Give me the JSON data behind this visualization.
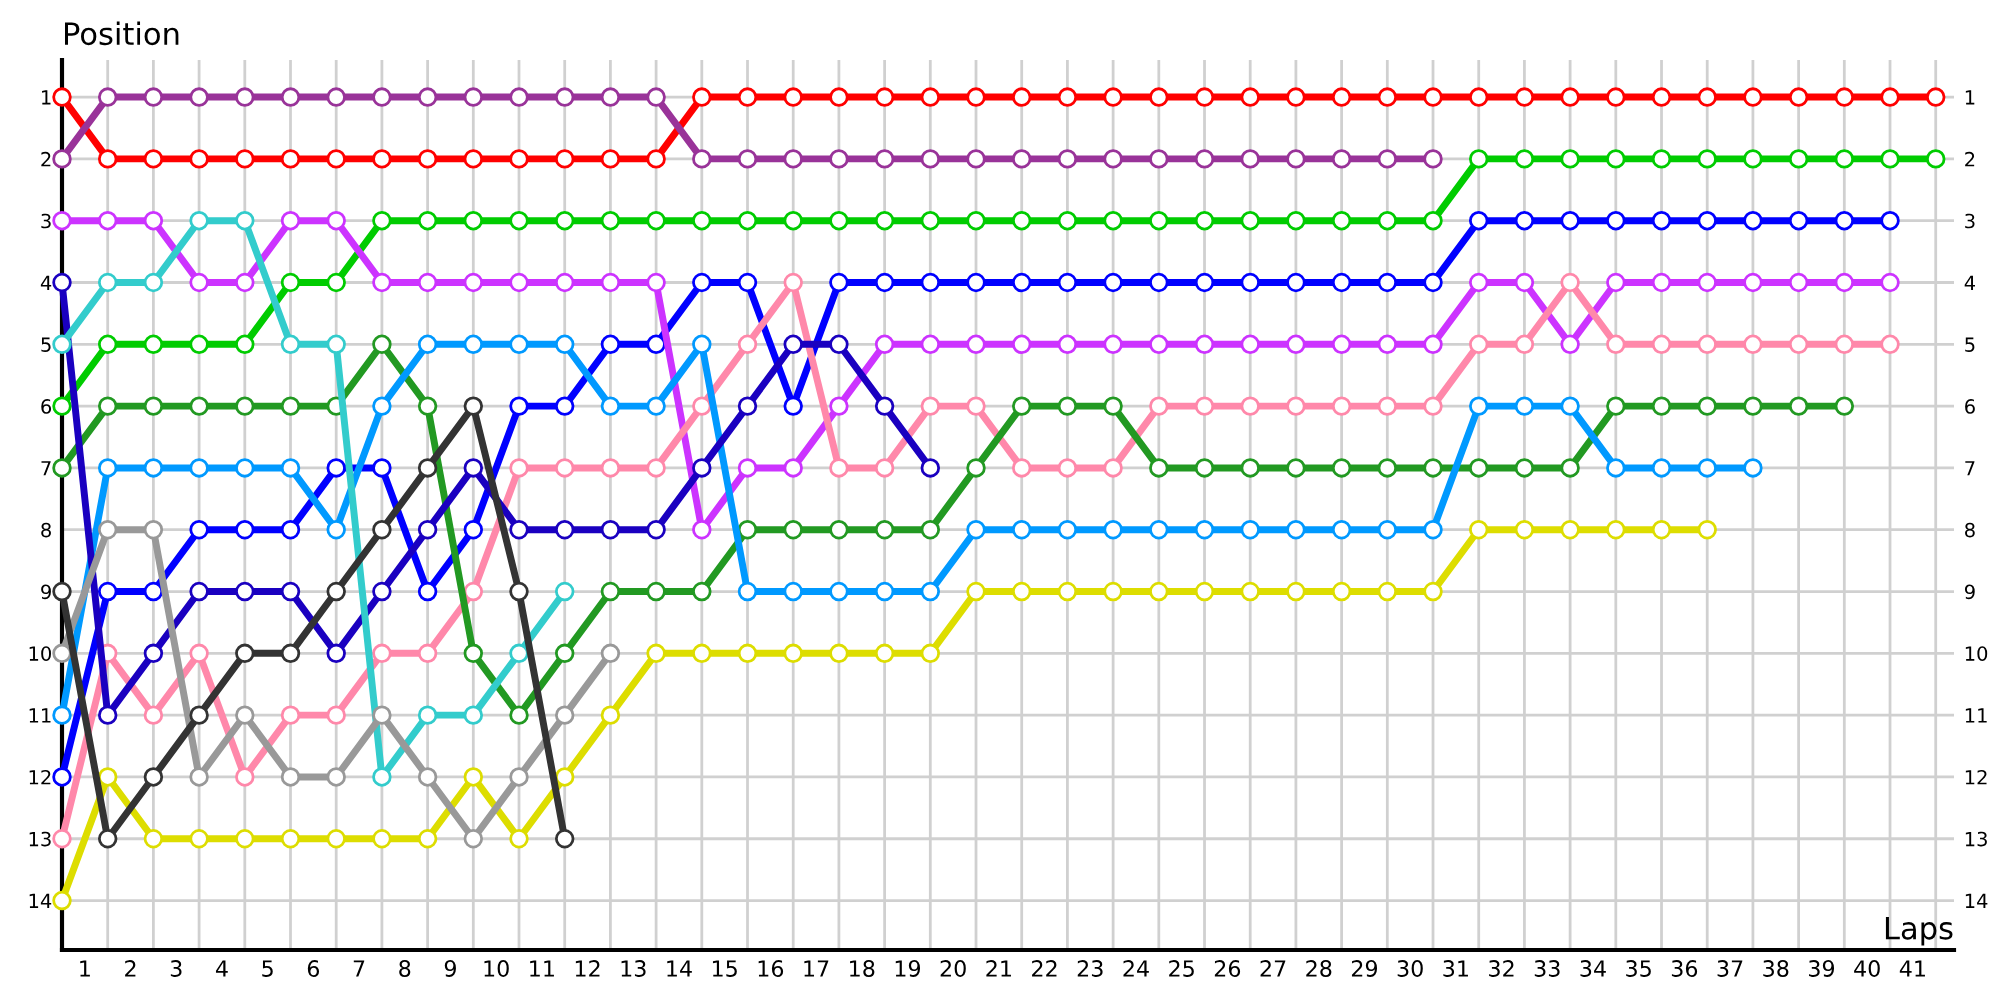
{
  "chart_data": {
    "type": "line",
    "xlabel": "Laps",
    "ylabel": "Position",
    "x": [
      0,
      1,
      2,
      3,
      4,
      5,
      6,
      7,
      8,
      9,
      10,
      11,
      12,
      13,
      14,
      15,
      16,
      17,
      18,
      19,
      20,
      21,
      22,
      23,
      24,
      25,
      26,
      27,
      28,
      29,
      30,
      31,
      32,
      33,
      34,
      35,
      36,
      37,
      38,
      39,
      40,
      41
    ],
    "xlim": [
      0,
      41.4
    ],
    "ylim": [
      14.8,
      0.4
    ],
    "y2lim": [
      14.8,
      0.4
    ],
    "xticks": [
      {
        "value": 0.5,
        "label": "1"
      },
      {
        "value": 1.5,
        "label": "2"
      },
      {
        "value": 2.5,
        "label": "3"
      },
      {
        "value": 3.5,
        "label": "4"
      },
      {
        "value": 4.5,
        "label": "5"
      },
      {
        "value": 5.5,
        "label": "6"
      },
      {
        "value": 6.5,
        "label": "7"
      },
      {
        "value": 7.5,
        "label": "8"
      },
      {
        "value": 8.5,
        "label": "9"
      },
      {
        "value": 9.5,
        "label": "10"
      },
      {
        "value": 10.5,
        "label": "11"
      },
      {
        "value": 11.5,
        "label": "12"
      },
      {
        "value": 12.5,
        "label": "13"
      },
      {
        "value": 13.5,
        "label": "14"
      },
      {
        "value": 14.5,
        "label": "15"
      },
      {
        "value": 15.5,
        "label": "16"
      },
      {
        "value": 16.5,
        "label": "17"
      },
      {
        "value": 17.5,
        "label": "18"
      },
      {
        "value": 18.5,
        "label": "19"
      },
      {
        "value": 19.5,
        "label": "20"
      },
      {
        "value": 20.5,
        "label": "21"
      },
      {
        "value": 21.5,
        "label": "22"
      },
      {
        "value": 22.5,
        "label": "23"
      },
      {
        "value": 23.5,
        "label": "24"
      },
      {
        "value": 24.5,
        "label": "25"
      },
      {
        "value": 25.5,
        "label": "26"
      },
      {
        "value": 26.5,
        "label": "27"
      },
      {
        "value": 27.5,
        "label": "28"
      },
      {
        "value": 28.5,
        "label": "29"
      },
      {
        "value": 29.5,
        "label": "30"
      },
      {
        "value": 30.5,
        "label": "31"
      },
      {
        "value": 31.5,
        "label": "32"
      },
      {
        "value": 32.5,
        "label": "33"
      },
      {
        "value": 33.5,
        "label": "34"
      },
      {
        "value": 34.5,
        "label": "35"
      },
      {
        "value": 35.5,
        "label": "36"
      },
      {
        "value": 36.5,
        "label": "37"
      },
      {
        "value": 37.5,
        "label": "38"
      },
      {
        "value": 38.5,
        "label": "39"
      },
      {
        "value": 39.5,
        "label": "40"
      },
      {
        "value": 40.5,
        "label": "41"
      }
    ],
    "yticks": [
      1,
      2,
      3,
      4,
      5,
      6,
      7,
      8,
      9,
      10,
      11,
      12,
      13,
      14
    ],
    "y2ticks": [
      1,
      2,
      3,
      4,
      5,
      6,
      7,
      8,
      9,
      10,
      11,
      12,
      13,
      14
    ],
    "grid": true,
    "marker": "circle",
    "line_style": "solid",
    "series": [
      {
        "color": "#ff0000",
        "values": [
          1,
          2,
          2,
          2,
          2,
          2,
          2,
          2,
          2,
          2,
          2,
          2,
          2,
          2,
          1,
          1,
          1,
          1,
          1,
          1,
          1,
          1,
          1,
          1,
          1,
          1,
          1,
          1,
          1,
          1,
          1,
          1,
          1,
          1,
          1,
          1,
          1,
          1,
          1,
          1,
          1,
          1
        ]
      },
      {
        "color": "#993399",
        "values": [
          2,
          1,
          1,
          1,
          1,
          1,
          1,
          1,
          1,
          1,
          1,
          1,
          1,
          1,
          2,
          2,
          2,
          2,
          2,
          2,
          2,
          2,
          2,
          2,
          2,
          2,
          2,
          2,
          2,
          2,
          2,
          null,
          null,
          null,
          null,
          null,
          null,
          null,
          null,
          null,
          null,
          null
        ]
      },
      {
        "color": "#00cc00",
        "values": [
          6,
          5,
          5,
          5,
          5,
          4,
          4,
          3,
          3,
          3,
          3,
          3,
          3,
          3,
          3,
          3,
          3,
          3,
          3,
          3,
          3,
          3,
          3,
          3,
          3,
          3,
          3,
          3,
          3,
          3,
          3,
          2,
          2,
          2,
          2,
          2,
          2,
          2,
          2,
          2,
          2,
          2
        ]
      },
      {
        "color": "#0000ff",
        "values": [
          12,
          9,
          9,
          8,
          8,
          8,
          7,
          7,
          9,
          8,
          6,
          6,
          5,
          5,
          4,
          4,
          6,
          4,
          4,
          4,
          4,
          4,
          4,
          4,
          4,
          4,
          4,
          4,
          4,
          4,
          4,
          3,
          3,
          3,
          3,
          3,
          3,
          3,
          3,
          3,
          3,
          null
        ]
      },
      {
        "color": "#cc33ff",
        "values": [
          3,
          3,
          3,
          4,
          4,
          3,
          3,
          4,
          4,
          4,
          4,
          4,
          4,
          4,
          8,
          7,
          7,
          6,
          5,
          5,
          5,
          5,
          5,
          5,
          5,
          5,
          5,
          5,
          5,
          5,
          5,
          4,
          4,
          5,
          4,
          4,
          4,
          4,
          4,
          4,
          4,
          null
        ]
      },
      {
        "color": "#ff88aa",
        "values": [
          13,
          10,
          11,
          10,
          12,
          11,
          11,
          10,
          10,
          9,
          7,
          7,
          7,
          7,
          6,
          5,
          4,
          7,
          7,
          6,
          6,
          7,
          7,
          7,
          6,
          6,
          6,
          6,
          6,
          6,
          6,
          5,
          5,
          4,
          5,
          5,
          5,
          5,
          5,
          5,
          5,
          null
        ]
      },
      {
        "color": "#229922",
        "values": [
          7,
          6,
          6,
          6,
          6,
          6,
          6,
          5,
          6,
          10,
          11,
          10,
          9,
          9,
          9,
          8,
          8,
          8,
          8,
          8,
          7,
          6,
          6,
          6,
          7,
          7,
          7,
          7,
          7,
          7,
          7,
          7,
          7,
          7,
          6,
          6,
          6,
          6,
          6,
          6,
          null,
          null
        ]
      },
      {
        "color": "#0099ff",
        "values": [
          11,
          7,
          7,
          7,
          7,
          7,
          8,
          6,
          5,
          5,
          5,
          5,
          6,
          6,
          5,
          9,
          9,
          9,
          9,
          9,
          8,
          8,
          8,
          8,
          8,
          8,
          8,
          8,
          8,
          8,
          8,
          6,
          6,
          6,
          7,
          7,
          7,
          7,
          null,
          null,
          null,
          null
        ]
      },
      {
        "color": "#dddd00",
        "values": [
          14,
          12,
          13,
          13,
          13,
          13,
          13,
          13,
          13,
          12,
          13,
          12,
          11,
          10,
          10,
          10,
          10,
          10,
          10,
          10,
          9,
          9,
          9,
          9,
          9,
          9,
          9,
          9,
          9,
          9,
          9,
          8,
          8,
          8,
          8,
          8,
          8,
          null,
          null,
          null,
          null,
          null
        ]
      },
      {
        "color": "#1a00c0",
        "values": [
          4,
          11,
          10,
          9,
          9,
          9,
          10,
          9,
          8,
          7,
          8,
          8,
          8,
          8,
          7,
          6,
          5,
          5,
          6,
          7,
          null,
          null,
          null,
          null,
          null,
          null,
          null,
          null,
          null,
          null,
          null,
          null,
          null,
          null,
          null,
          null,
          null,
          null,
          null,
          null,
          null,
          null
        ]
      },
      {
        "color": "#33cccc",
        "values": [
          5,
          4,
          4,
          3,
          3,
          5,
          5,
          12,
          11,
          11,
          10,
          9,
          null,
          null,
          null,
          null,
          null,
          null,
          null,
          null,
          null,
          null,
          null,
          null,
          null,
          null,
          null,
          null,
          null,
          null,
          null,
          null,
          null,
          null,
          null,
          null,
          null,
          null,
          null,
          null,
          null,
          null
        ]
      },
      {
        "color": "#999999",
        "values": [
          10,
          8,
          8,
          12,
          11,
          12,
          12,
          11,
          12,
          13,
          12,
          11,
          10,
          null,
          null,
          null,
          null,
          null,
          null,
          null,
          null,
          null,
          null,
          null,
          null,
          null,
          null,
          null,
          null,
          null,
          null,
          null,
          null,
          null,
          null,
          null,
          null,
          null,
          null,
          null,
          null,
          null
        ]
      },
      {
        "color": "#333333",
        "values": [
          9,
          13,
          12,
          11,
          10,
          10,
          9,
          8,
          7,
          6,
          9,
          13,
          null,
          null,
          null,
          null,
          null,
          null,
          null,
          null,
          null,
          null,
          null,
          null,
          null,
          null,
          null,
          null,
          null,
          null,
          null,
          null,
          null,
          null,
          null,
          null,
          null,
          null,
          null,
          null,
          null,
          null
        ]
      }
    ]
  }
}
